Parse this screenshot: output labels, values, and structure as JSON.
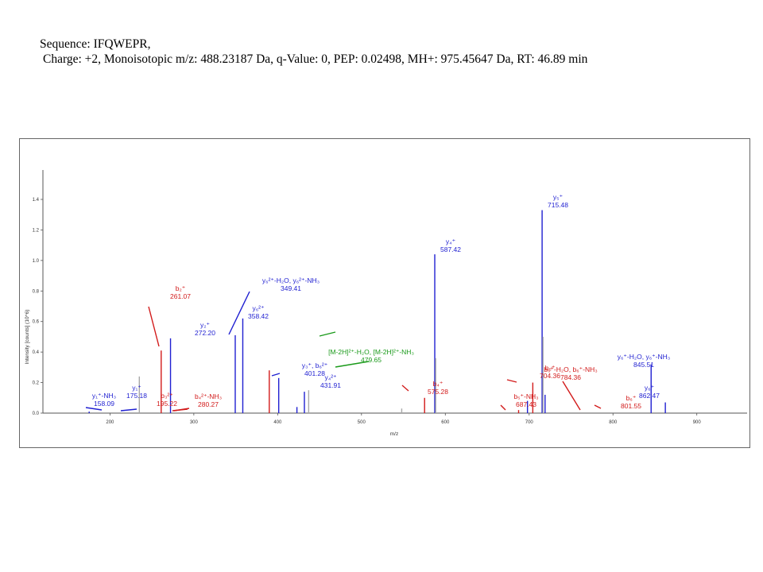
{
  "header": {
    "sequence": "Sequence: IFQWEPR,",
    "details": "Charge: +2, Monoisotopic m/z: 488.23187 Da, q-Value: 0, PEP: 0.02498, MH+: 975.45647 Da, RT: 46.89 min"
  },
  "chart_data": {
    "type": "bar",
    "xlabel": "m/z",
    "ylabel": "Intensity [counts] (10^6)",
    "xlim": [
      120,
      960
    ],
    "ylim": [
      0,
      1.5
    ],
    "xticks": [
      "200",
      "300",
      "400",
      "500",
      "600",
      "700",
      "800",
      "900"
    ],
    "yticks": [
      "0.0",
      "0.2",
      "0.4",
      "0.6",
      "0.8",
      "1.0",
      "1.2",
      "1.4"
    ],
    "colors": {
      "y": "#1f1fd1",
      "b": "#d21a1a",
      "precursor": "#1a9a1a",
      "unassigned": "#a8a8a8",
      "axis": "#555555"
    },
    "peaks": [
      {
        "mz": 175.18,
        "intensity": 0.01,
        "ion": "y"
      },
      {
        "mz": 235.0,
        "intensity": 0.24,
        "ion": "unassigned"
      },
      {
        "mz": 261.07,
        "intensity": 0.41,
        "ion": "b"
      },
      {
        "mz": 272.2,
        "intensity": 0.49,
        "ion": "y"
      },
      {
        "mz": 349.41,
        "intensity": 0.51,
        "ion": "y"
      },
      {
        "mz": 358.42,
        "intensity": 0.62,
        "ion": "y"
      },
      {
        "mz": 390.0,
        "intensity": 0.28,
        "ion": "b"
      },
      {
        "mz": 401.28,
        "intensity": 0.23,
        "ion": "y"
      },
      {
        "mz": 423.0,
        "intensity": 0.04,
        "ion": "y"
      },
      {
        "mz": 431.91,
        "intensity": 0.14,
        "ion": "y"
      },
      {
        "mz": 437.0,
        "intensity": 0.15,
        "ion": "unassigned"
      },
      {
        "mz": 548.0,
        "intensity": 0.03,
        "ion": "unassigned"
      },
      {
        "mz": 575.28,
        "intensity": 0.1,
        "ion": "b"
      },
      {
        "mz": 587.42,
        "intensity": 1.04,
        "ion": "y"
      },
      {
        "mz": 588.5,
        "intensity": 0.36,
        "ion": "unassigned"
      },
      {
        "mz": 687.43,
        "intensity": 0.02,
        "ion": "b"
      },
      {
        "mz": 698.0,
        "intensity": 0.08,
        "ion": "y"
      },
      {
        "mz": 704.36,
        "intensity": 0.2,
        "ion": "b"
      },
      {
        "mz": 715.48,
        "intensity": 1.33,
        "ion": "y"
      },
      {
        "mz": 716.5,
        "intensity": 0.5,
        "ion": "unassigned"
      },
      {
        "mz": 719.0,
        "intensity": 0.12,
        "ion": "y"
      },
      {
        "mz": 845.51,
        "intensity": 0.32,
        "ion": "y"
      },
      {
        "mz": 862.47,
        "intensity": 0.07,
        "ion": "y"
      }
    ],
    "annotations": [
      {
        "lines": [
          "y₁⁺-NH₃",
          "158.09"
        ],
        "color": "y",
        "at": [
          131,
          501
        ]
      },
      {
        "lines": [
          "y₁⁺",
          "175.18"
        ],
        "color": "y",
        "at": [
          172,
          491
        ]
      },
      {
        "lines": [
          "b₃²⁺",
          "195.22"
        ],
        "color": "b",
        "at": [
          210,
          501
        ]
      },
      {
        "lines": [
          "b₂⁺",
          "261.07"
        ],
        "color": "b",
        "at": [
          227,
          366
        ]
      },
      {
        "lines": [
          "y₂⁺",
          "272.20"
        ],
        "color": "y",
        "at": [
          258,
          412
        ]
      },
      {
        "lines": [
          "b₄²⁺-NH₃",
          "280.27"
        ],
        "color": "b",
        "at": [
          262,
          502
        ]
      },
      {
        "lines": [
          "y₆²⁺-H₂O, y₆²⁺-NH₃",
          "349.41"
        ],
        "color": "y",
        "at": [
          366,
          356
        ]
      },
      {
        "lines": [
          "y₆²⁺",
          "358.42"
        ],
        "color": "y",
        "at": [
          325,
          391
        ]
      },
      {
        "lines": [
          "y₃⁺, b₆²⁺",
          "401.28"
        ],
        "color": "y",
        "at": [
          396,
          463
        ]
      },
      {
        "lines": [
          "y₄²⁺",
          "431.91"
        ],
        "color": "y",
        "at": [
          416,
          478
        ]
      },
      {
        "lines": [
          "[M-2H]²⁺-H₂O, [M-2H]²⁺-NH₃",
          "479.65"
        ],
        "color": "precursor",
        "at": [
          467,
          446
        ]
      },
      {
        "lines": [
          "b₄⁺",
          "575.28"
        ],
        "color": "b",
        "at": [
          551,
          486
        ]
      },
      {
        "lines": [
          "y₄⁺",
          "587.42"
        ],
        "color": "y",
        "at": [
          567,
          307
        ]
      },
      {
        "lines": [
          "b₅⁺-NH₃",
          "687.43"
        ],
        "color": "b",
        "at": [
          662,
          502
        ]
      },
      {
        "lines": [
          "b₅⁺",
          "704.36"
        ],
        "color": "b",
        "at": [
          692,
          466
        ]
      },
      {
        "lines": [
          "y₅⁺",
          "715.48"
        ],
        "color": "y",
        "at": [
          702,
          251
        ]
      },
      {
        "lines": [
          "b₆⁺-H₂O, b₆⁺-NH₃",
          "784.36"
        ],
        "color": "b",
        "at": [
          718,
          468
        ]
      },
      {
        "lines": [
          "b₆⁺",
          "801.55"
        ],
        "color": "b",
        "at": [
          794,
          504
        ]
      },
      {
        "lines": [
          "y₆⁺-H₂O, y₆⁺-NH₃",
          "845.51"
        ],
        "color": "y",
        "at": [
          810,
          452
        ]
      },
      {
        "lines": [
          "y₆⁺",
          "862.47"
        ],
        "color": "y",
        "at": [
          817,
          491
        ]
      }
    ]
  }
}
